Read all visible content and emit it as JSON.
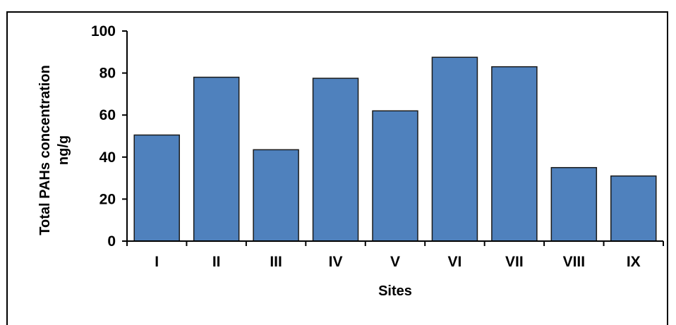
{
  "chart_data": {
    "type": "bar",
    "xlabel": "Sites",
    "ylabel": [
      "Total PAHs concentration",
      "ng/g"
    ],
    "categories": [
      "I",
      "II",
      "III",
      "IV",
      "V",
      "VI",
      "VII",
      "VIII",
      "IX"
    ],
    "values": [
      50.5,
      78,
      43.5,
      77.5,
      62,
      87.5,
      83,
      35,
      31
    ],
    "ylim": [
      0,
      100
    ],
    "yticks": [
      0,
      20,
      40,
      60,
      80,
      100
    ],
    "grid": false,
    "legend": "none",
    "colors": {
      "bar_fill": "#4F81BD",
      "bar_stroke": "#1a1a1a"
    }
  }
}
